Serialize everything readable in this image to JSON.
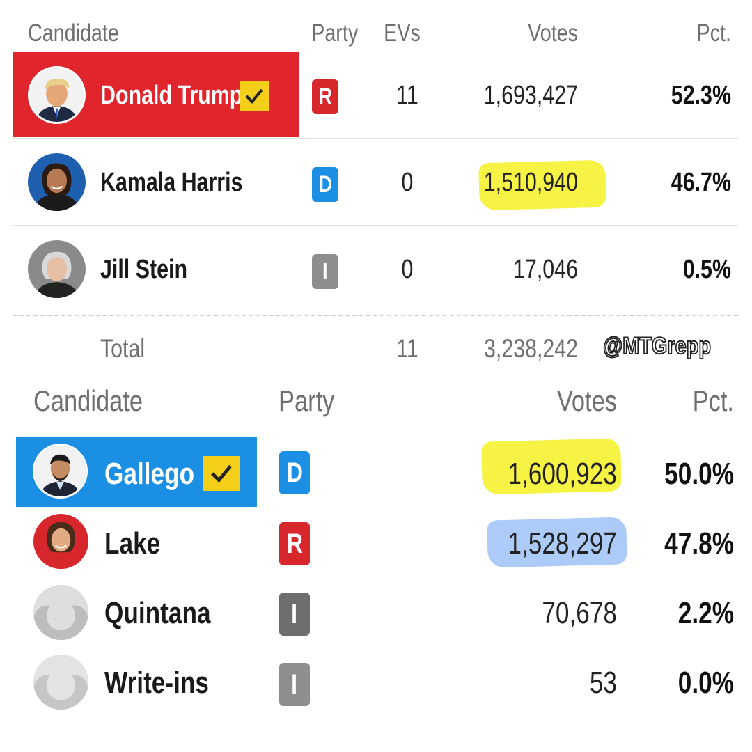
{
  "presidential": {
    "headers": {
      "candidate": "Candidate",
      "party": "Party",
      "evs": "EVs",
      "votes": "Votes",
      "pct": "Pct."
    },
    "rows": [
      {
        "name": "Donald Trump",
        "party": "R",
        "evs": "11",
        "votes": "1,693,427",
        "pct": "52.3%",
        "winner": true,
        "color": "#e0262c"
      },
      {
        "name": "Kamala Harris",
        "party": "D",
        "evs": "0",
        "votes": "1,510,940",
        "pct": "46.7%",
        "winner": false
      },
      {
        "name": "Jill Stein",
        "party": "I",
        "evs": "0",
        "votes": "17,046",
        "pct": "0.5%",
        "winner": false
      }
    ],
    "total": {
      "label": "Total",
      "evs": "11",
      "votes": "3,238,242"
    }
  },
  "watermark": "@MTGrepp",
  "senate": {
    "headers": {
      "candidate": "Candidate",
      "party": "Party",
      "votes": "Votes",
      "pct": "Pct."
    },
    "rows": [
      {
        "name": "Gallego",
        "party": "D",
        "votes": "1,600,923",
        "pct": "50.0%",
        "winner": true,
        "color": "#1a8fe3"
      },
      {
        "name": "Lake",
        "party": "R",
        "votes": "1,528,297",
        "pct": "47.8%",
        "winner": false
      },
      {
        "name": "Quintana",
        "party": "I",
        "votes": "70,678",
        "pct": "2.2%",
        "winner": false
      },
      {
        "name": "Write-ins",
        "party": "I",
        "votes": "53",
        "pct": "0.0%",
        "winner": false
      }
    ]
  },
  "icons": {
    "winner_check": "checkmark-icon",
    "placeholder_avatar": "person-silhouette-icon"
  }
}
